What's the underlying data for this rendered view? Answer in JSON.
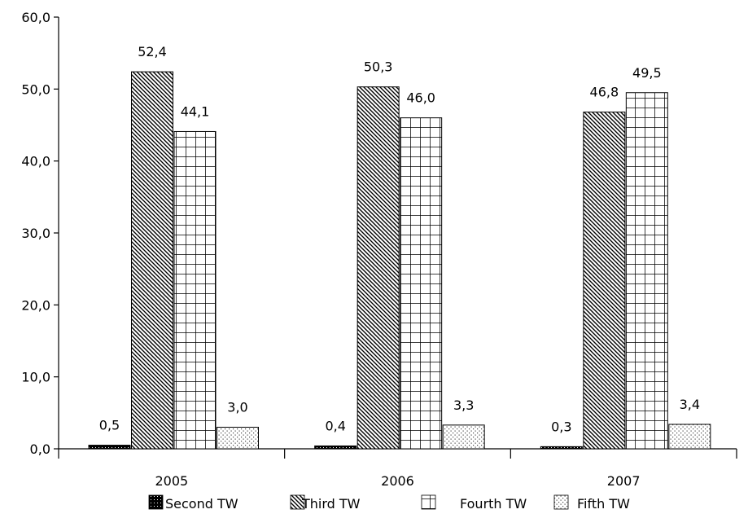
{
  "chart_data": {
    "type": "bar",
    "title": "",
    "xlabel": "",
    "ylabel": "",
    "ylim": [
      0,
      60
    ],
    "yticks": [
      0,
      10,
      20,
      30,
      40,
      50,
      60
    ],
    "ytick_labels": [
      "0,0",
      "10,0",
      "20,0",
      "30,0",
      "40,0",
      "50,0",
      "60,0"
    ],
    "categories": [
      "2005",
      "2006",
      "2007"
    ],
    "series": [
      {
        "name": "Second TW",
        "pattern": "dots-dark",
        "values": [
          0.5,
          0.4,
          0.3
        ],
        "labels": [
          "0,5",
          "0,4",
          "0,3"
        ]
      },
      {
        "name": "Third TW",
        "pattern": "diagonal-hatch",
        "values": [
          52.4,
          50.3,
          46.8
        ],
        "labels": [
          "52,4",
          "50,3",
          "46,8"
        ]
      },
      {
        "name": "Fourth TW",
        "pattern": "grid",
        "values": [
          44.1,
          46.0,
          49.5
        ],
        "labels": [
          "44,1",
          "46,0",
          "49,5"
        ]
      },
      {
        "name": "Fifth TW",
        "pattern": "dots-light",
        "values": [
          3.0,
          3.3,
          3.4
        ],
        "labels": [
          "3,0",
          "3,3",
          "3,4"
        ]
      }
    ],
    "grid": false,
    "legend_position": "bottom"
  }
}
